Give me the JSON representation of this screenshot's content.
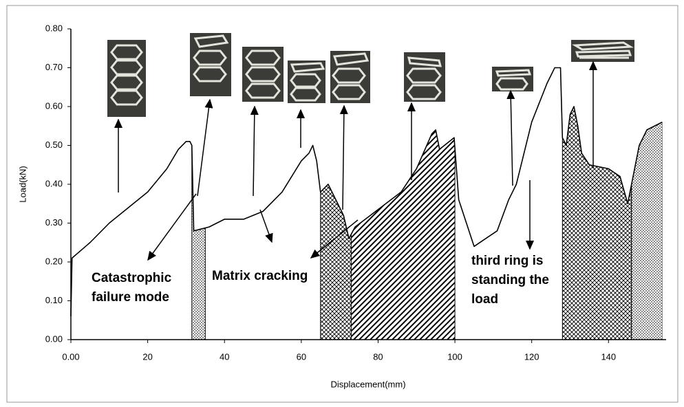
{
  "chart_data": {
    "type": "line",
    "x_label": "Displacement(mm)",
    "y_label": "Load(kN)",
    "x": [
      0,
      0.3,
      5,
      10,
      15,
      20,
      25,
      28,
      30,
      31,
      31.5,
      32,
      36,
      40,
      45,
      50,
      55,
      60,
      62,
      63,
      64,
      65,
      67,
      69,
      71,
      72.4,
      74,
      78,
      82,
      86,
      90,
      94,
      95,
      96,
      99.8,
      101,
      103,
      105,
      108,
      111,
      114,
      116,
      118,
      120,
      124,
      126,
      127.5,
      128,
      129,
      130,
      131,
      132,
      133,
      135,
      140,
      143,
      145,
      146,
      148,
      150,
      154
    ],
    "values": [
      0.06,
      0.21,
      0.25,
      0.3,
      0.34,
      0.38,
      0.44,
      0.49,
      0.51,
      0.51,
      0.5,
      0.28,
      0.29,
      0.31,
      0.31,
      0.33,
      0.38,
      0.46,
      0.48,
      0.5,
      0.46,
      0.38,
      0.4,
      0.36,
      0.32,
      0.26,
      0.29,
      0.32,
      0.35,
      0.38,
      0.44,
      0.53,
      0.54,
      0.49,
      0.52,
      0.36,
      0.3,
      0.24,
      0.26,
      0.28,
      0.36,
      0.4,
      0.48,
      0.56,
      0.66,
      0.7,
      0.7,
      0.52,
      0.5,
      0.58,
      0.6,
      0.55,
      0.48,
      0.45,
      0.44,
      0.42,
      0.35,
      0.4,
      0.5,
      0.54,
      0.56
    ],
    "color": "#000000",
    "xlim": [
      0,
      155
    ],
    "xticks": [
      {
        "value": 0,
        "label": "0.00"
      },
      20,
      40,
      60,
      80,
      100,
      120,
      140
    ],
    "ylim": [
      0,
      0.8
    ],
    "yticks": [
      {
        "value": 0,
        "label": "0.00"
      },
      {
        "value": 0.1,
        "label": "0.10"
      },
      {
        "value": 0.2,
        "label": "0.20"
      },
      {
        "value": 0.3,
        "label": "0.30"
      },
      {
        "value": 0.4,
        "label": "0.40"
      },
      {
        "value": 0.5,
        "label": "0.50"
      },
      {
        "value": 0.6,
        "label": "0.60"
      },
      {
        "value": 0.7,
        "label": "0.70"
      },
      {
        "value": 0.8,
        "label": "0.80"
      }
    ],
    "shaded_regions": [
      {
        "x": [
          31.5,
          35
        ],
        "pattern": "dots"
      },
      {
        "x": [
          65,
          73
        ],
        "pattern": "cross"
      },
      {
        "x": [
          73,
          100
        ],
        "pattern": "diagonal"
      },
      {
        "x": [
          128,
          146
        ],
        "pattern": "cross"
      },
      {
        "x": [
          146,
          154
        ],
        "pattern": "dots"
      }
    ],
    "annotations": [
      {
        "lines": [
          "Catastrophic",
          "failure mode"
        ]
      },
      {
        "lines": [
          "Matrix cracking"
        ]
      },
      {
        "lines": [
          "third ring is",
          "standing the",
          "load"
        ]
      }
    ]
  }
}
